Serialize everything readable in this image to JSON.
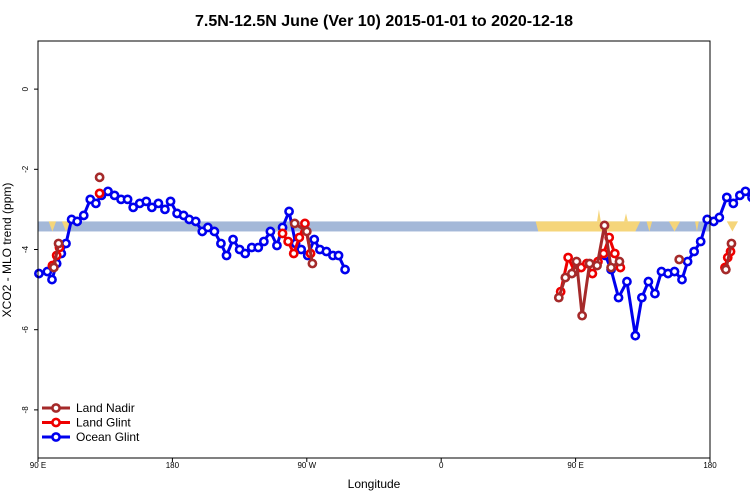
{
  "chart_data": {
    "type": "line",
    "title": "7.5N-12.5N June (Ver 10)   2015-01-01 to 2020-12-18",
    "xlabel": "Longitude",
    "ylabel": "XCO2 - MLO trend (ppm)",
    "xlim": [
      90,
      450
    ],
    "ylim": [
      -9.2,
      1.2
    ],
    "x_ticks": [
      {
        "value": 90,
        "label": "90 E"
      },
      {
        "value": 180,
        "label": "180"
      },
      {
        "value": 270,
        "label": "90 W"
      },
      {
        "value": 360,
        "label": "0"
      },
      {
        "value": 450,
        "label": "90 E"
      },
      {
        "value": 540,
        "label": "180"
      }
    ],
    "y_ticks": [
      0,
      -2,
      -4,
      -6,
      -8
    ],
    "y_tick_labels": [
      "0",
      "-2",
      "-4",
      "-6",
      "-8"
    ],
    "x_axis_extent": [
      90,
      540
    ],
    "legend_position": "bottom-left",
    "band": {
      "y_min": -3.55,
      "y_max": -3.3,
      "color": "#a4b8d8"
    },
    "land_fill": {
      "color": "#f5d57a",
      "segments": [
        [
          [
            95.7,
            -3.3
          ],
          [
            97.7,
            -3.55
          ],
          [
            99.7,
            -3.3
          ]
        ],
        [
          [
            102.8,
            -3.3
          ],
          [
            105,
            -3.55
          ],
          [
            107.2,
            -3.3
          ]
        ],
        [
          [
            356.6,
            -3.3
          ],
          [
            358,
            -3.55
          ],
          [
            385,
            -3.55
          ],
          [
            410,
            -3.55
          ],
          [
            412.6,
            -3.3
          ]
        ],
        [
          [
            389.5,
            -3.3
          ],
          [
            390.5,
            -3.0
          ],
          [
            391.5,
            -3.3
          ]
        ],
        [
          [
            404,
            -3.3
          ],
          [
            405,
            -3.1
          ],
          [
            406,
            -3.3
          ]
        ],
        [
          [
            416,
            -3.3
          ],
          [
            417.5,
            -3.55
          ],
          [
            419,
            -3.3
          ]
        ],
        [
          [
            428,
            -3.3
          ],
          [
            431,
            -3.55
          ],
          [
            434,
            -3.3
          ]
        ],
        [
          [
            442,
            -3.3
          ],
          [
            443,
            -3.55
          ],
          [
            444,
            -3.3
          ]
        ],
        [
          [
            459,
            -3.3
          ],
          [
            462,
            -3.55
          ],
          [
            465,
            -3.3
          ]
        ],
        [
          [
            479,
            -3.3
          ],
          [
            481,
            -3.55
          ],
          [
            483,
            -3.3
          ]
        ],
        [
          [
            494,
            -3.3
          ],
          [
            495,
            -3.55
          ],
          [
            496,
            -3.3
          ]
        ]
      ]
    },
    "series": [
      {
        "name": "Ocean Glint",
        "color": "#0000ee",
        "segments": [
          [
            [
              90.5,
              -4.6
            ],
            [
              95,
              -4.55
            ],
            [
              97.5,
              -4.75
            ],
            [
              100,
              -4.35
            ],
            [
              102.5,
              -4.1
            ],
            [
              105,
              -3.85
            ],
            [
              108,
              -3.25
            ],
            [
              111,
              -3.3
            ],
            [
              114.5,
              -3.15
            ],
            [
              118,
              -2.75
            ],
            [
              121,
              -2.85
            ],
            [
              124,
              -2.65
            ],
            [
              127.5,
              -2.55
            ],
            [
              131,
              -2.65
            ],
            [
              134.5,
              -2.75
            ],
            [
              138,
              -2.75
            ],
            [
              141,
              -2.95
            ],
            [
              144.5,
              -2.85
            ],
            [
              148,
              -2.8
            ],
            [
              151,
              -2.95
            ],
            [
              154.5,
              -2.85
            ],
            [
              158,
              -3.0
            ],
            [
              161,
              -2.8
            ],
            [
              164.5,
              -3.1
            ],
            [
              168,
              -3.15
            ],
            [
              171,
              -3.25
            ],
            [
              174.5,
              -3.3
            ],
            [
              178,
              -3.55
            ],
            [
              181,
              -3.45
            ],
            [
              184.5,
              -3.55
            ],
            [
              188,
              -3.85
            ],
            [
              191,
              -4.15
            ],
            [
              194.5,
              -3.75
            ],
            [
              198,
              -4.0
            ],
            [
              201,
              -4.1
            ],
            [
              204.5,
              -3.95
            ],
            [
              208,
              -3.95
            ],
            [
              211,
              -3.8
            ],
            [
              214.5,
              -3.55
            ],
            [
              218,
              -3.9
            ],
            [
              221,
              -3.45
            ],
            [
              224.5,
              -3.05
            ],
            [
              228,
              -3.85
            ],
            [
              231,
              -4.0
            ],
            [
              234.5,
              -4.15
            ],
            [
              238,
              -3.75
            ],
            [
              241,
              -4.0
            ],
            [
              244.5,
              -4.05
            ],
            [
              248,
              -4.15
            ],
            [
              251,
              -4.15
            ],
            [
              254.5,
              -4.5
            ]
          ],
          [
            [
              394,
              -4.15
            ],
            [
              397,
              -4.5
            ],
            [
              401,
              -5.2
            ],
            [
              405.5,
              -4.8
            ],
            [
              410,
              -6.15
            ],
            [
              413.5,
              -5.2
            ],
            [
              417,
              -4.8
            ],
            [
              420.5,
              -5.1
            ],
            [
              424,
              -4.55
            ],
            [
              427.5,
              -4.6
            ],
            [
              431,
              -4.55
            ],
            [
              435,
              -4.75
            ],
            [
              438,
              -4.3
            ],
            [
              441.5,
              -4.05
            ],
            [
              445,
              -3.8
            ],
            [
              448.5,
              -3.25
            ],
            [
              452,
              -3.3
            ],
            [
              455,
              -3.2
            ],
            [
              459,
              -2.7
            ],
            [
              462.5,
              -2.85
            ],
            [
              466,
              -2.65
            ],
            [
              469,
              -2.55
            ],
            [
              472.5,
              -2.7
            ],
            [
              476,
              -2.8
            ],
            [
              479.5,
              -2.75
            ],
            [
              483,
              -2.95
            ],
            [
              486.5,
              -2.85
            ]
          ]
        ]
      },
      {
        "name": "Land Glint",
        "color": "#ee0000",
        "segments": [
          [
            [
              97.7,
              -4.4
            ],
            [
              100,
              -4.15
            ],
            [
              101.5,
              -3.95
            ]
          ],
          [
            [
              123,
              -2.6
            ]
          ],
          [
            [
              221,
              -3.6
            ],
            [
              224,
              -3.8
            ],
            [
              227,
              -4.1
            ],
            [
              230,
              -3.7
            ],
            [
              233,
              -3.35
            ],
            [
              236,
              -4.1
            ]
          ],
          [
            [
              370,
              -5.05
            ],
            [
              374,
              -4.2
            ],
            [
              377.5,
              -4.55
            ],
            [
              381,
              -4.45
            ],
            [
              384,
              -4.35
            ],
            [
              387,
              -4.6
            ],
            [
              390,
              -4.3
            ],
            [
              393,
              -4.1
            ],
            [
              396,
              -3.7
            ],
            [
              399,
              -4.1
            ],
            [
              402,
              -4.45
            ]
          ],
          [
            [
              458,
              -4.45
            ],
            [
              459.5,
              -4.2
            ],
            [
              461,
              -4.05
            ]
          ],
          [
            [
              483,
              -2.6
            ]
          ]
        ]
      },
      {
        "name": "Land Nadir",
        "color": "#a52a2a",
        "segments": [
          [
            [
              98.5,
              -4.45
            ],
            [
              101,
              -3.85
            ]
          ],
          [
            [
              123,
              -2.2
            ]
          ],
          [
            [
              227.5,
              -3.35
            ],
            [
              234,
              -3.55
            ],
            [
              237,
              -4.35
            ]
          ],
          [
            [
              369,
              -5.2
            ],
            [
              372.5,
              -4.7
            ],
            [
              376,
              -4.6
            ],
            [
              378.5,
              -4.3
            ],
            [
              381.5,
              -5.65
            ],
            [
              385.5,
              -4.35
            ],
            [
              389.5,
              -4.4
            ],
            [
              393.5,
              -3.4
            ],
            [
              397,
              -4.45
            ],
            [
              401.5,
              -4.3
            ]
          ],
          [
            [
              433.5,
              -4.25
            ]
          ],
          [
            [
              458.5,
              -4.5
            ],
            [
              461.5,
              -3.85
            ]
          ],
          [
            [
              483,
              -2.2
            ]
          ]
        ]
      }
    ]
  }
}
